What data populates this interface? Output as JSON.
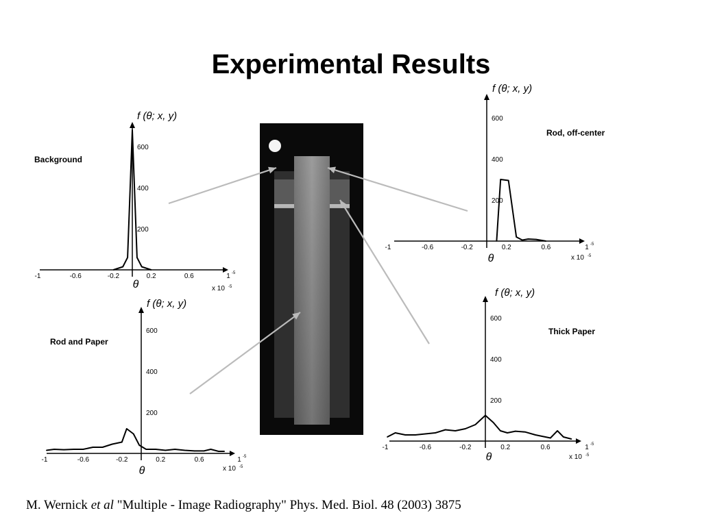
{
  "title": "Experimental Results",
  "citation": {
    "author": "M. Wernick ",
    "etal": "et al",
    "rest": " \"Multiple - Image Radiography\" Phys. Med. Biol. 48 (2003) 3875"
  },
  "axis_text": {
    "ylabel": "f (θ; x, y)",
    "xlabel": "θ",
    "multiplier": "x 10",
    "exponent": "-5"
  },
  "chart_data": [
    {
      "id": "background",
      "type": "line",
      "title": "Background",
      "xlim": [
        -1,
        1
      ],
      "ylim": [
        0,
        700
      ],
      "x_ticks": [
        "-1",
        "-0.6",
        "-0.2",
        "0.2",
        "0.6",
        "1"
      ],
      "y_ticks": [
        "600",
        "400",
        "200"
      ],
      "x": [
        -0.2,
        -0.1,
        -0.05,
        0.0,
        0.05,
        0.1,
        0.2
      ],
      "y": [
        0,
        15,
        60,
        680,
        60,
        15,
        0
      ]
    },
    {
      "id": "rod-off-center",
      "type": "line",
      "title": "Rod, off-center",
      "xlim": [
        -1,
        1
      ],
      "ylim": [
        0,
        700
      ],
      "x_ticks": [
        "-1",
        "-0.6",
        "-0.2",
        "0.2",
        "0.6",
        "1"
      ],
      "y_ticks": [
        "600",
        "400",
        "200"
      ],
      "x": [
        0.1,
        0.14,
        0.22,
        0.3,
        0.36,
        0.42,
        0.5,
        0.6
      ],
      "y": [
        0,
        300,
        295,
        20,
        5,
        10,
        8,
        0
      ]
    },
    {
      "id": "rod-and-paper",
      "type": "line",
      "title": "Rod and Paper",
      "xlim": [
        -1,
        1
      ],
      "ylim": [
        0,
        700
      ],
      "x_ticks": [
        "-1",
        "-0.6",
        "-0.2",
        "0.2",
        "0.6",
        "1"
      ],
      "y_ticks": [
        "600",
        "400",
        "200"
      ],
      "x": [
        -0.98,
        -0.9,
        -0.8,
        -0.7,
        -0.6,
        -0.5,
        -0.4,
        -0.3,
        -0.2,
        -0.15,
        -0.08,
        -0.02,
        0.05,
        0.15,
        0.25,
        0.35,
        0.45,
        0.55,
        0.65,
        0.72,
        0.8,
        0.86
      ],
      "y": [
        15,
        20,
        18,
        20,
        20,
        30,
        30,
        45,
        55,
        120,
        95,
        40,
        20,
        20,
        15,
        20,
        15,
        12,
        12,
        20,
        10,
        10
      ]
    },
    {
      "id": "thick-paper",
      "type": "line",
      "title": "Thick Paper",
      "xlim": [
        -1,
        1
      ],
      "ylim": [
        0,
        700
      ],
      "x_ticks": [
        "-1",
        "-0.6",
        "-0.2",
        "0.2",
        "0.6",
        "1"
      ],
      "y_ticks": [
        "600",
        "400",
        "200"
      ],
      "x": [
        -0.98,
        -0.9,
        -0.8,
        -0.7,
        -0.6,
        -0.5,
        -0.4,
        -0.3,
        -0.2,
        -0.1,
        0.0,
        0.08,
        0.15,
        0.22,
        0.3,
        0.4,
        0.5,
        0.6,
        0.65,
        0.72,
        0.78,
        0.86
      ],
      "y": [
        20,
        40,
        30,
        30,
        35,
        40,
        55,
        50,
        60,
        80,
        125,
        90,
        50,
        40,
        48,
        44,
        30,
        20,
        15,
        50,
        20,
        10
      ]
    }
  ],
  "colors": {
    "connector": "#bbbbbb",
    "xray_background": "#0a0a0a",
    "xray_rod": "#8c8c8c",
    "xray_paper": "#3a3a3a"
  }
}
